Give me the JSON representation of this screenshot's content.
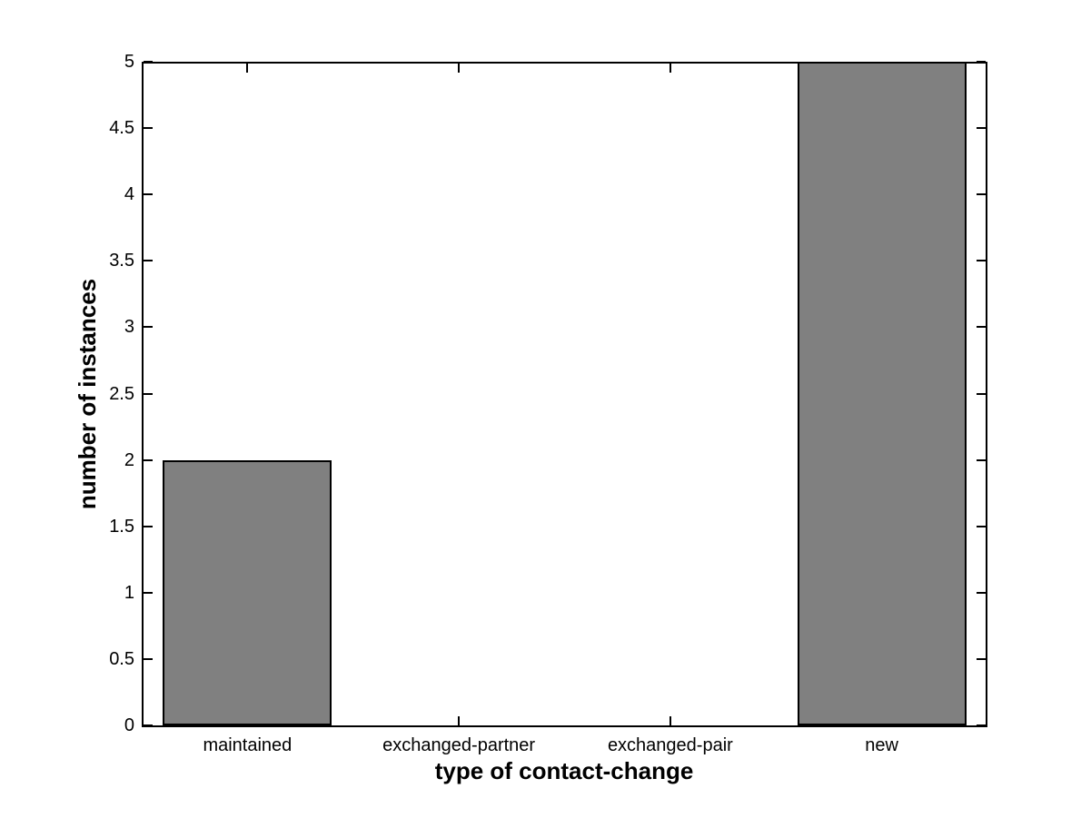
{
  "chart_data": {
    "type": "bar",
    "title": "",
    "categories": [
      "maintained",
      "exchanged-partner",
      "exchanged-pair",
      "new"
    ],
    "values": [
      2,
      0,
      0,
      5
    ],
    "xlabel": "type of contact-change",
    "ylabel": "number of instances",
    "ylim": [
      0,
      5
    ],
    "ytick_step": 0.5,
    "ytick_labels": [
      "0",
      "0.5",
      "1",
      "1.5",
      "2",
      "2.5",
      "3",
      "3.5",
      "4",
      "4.5",
      "5"
    ],
    "bar_width_fraction": 0.8,
    "grid": false,
    "legend": null,
    "colors": {
      "bar_fill": "#808080",
      "bar_border": "#000000",
      "axis": "#000000",
      "background": "#ffffff",
      "text": "#000000"
    }
  }
}
